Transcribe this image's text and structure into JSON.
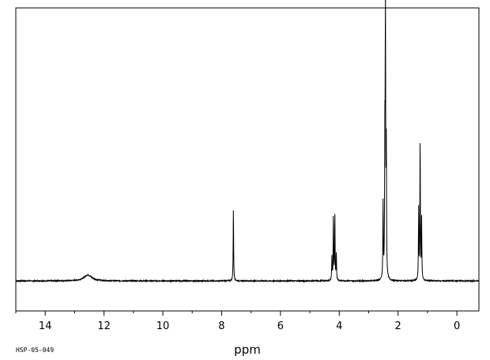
{
  "chart_data": {
    "type": "line",
    "title": "",
    "xlabel": "ppm",
    "ylabel": "",
    "x_reversed": true,
    "xlim": [
      15.0,
      -0.75
    ],
    "ylim": [
      -0.11,
      1.0
    ],
    "grid": false,
    "legend": "none",
    "x_ticks": [
      14,
      12,
      10,
      8,
      6,
      4,
      2,
      0
    ],
    "x_tick_labels": [
      "14",
      "12",
      "10",
      "8",
      "6",
      "4",
      "2",
      "0"
    ],
    "x_minor_tick_step": 1,
    "sample_id": "HSP-05-049",
    "series": [
      {
        "peaks": [
          {
            "ppm": 12.55,
            "height": 0.022,
            "width": 0.16
          },
          {
            "ppm": 7.6,
            "height": 0.27,
            "width": 0.009
          },
          {
            "ppm": 4.25,
            "height": 0.085,
            "width": 0.009
          },
          {
            "ppm": 4.2,
            "height": 0.24,
            "width": 0.009
          },
          {
            "ppm": 4.15,
            "height": 0.24,
            "width": 0.009
          },
          {
            "ppm": 4.1,
            "height": 0.095,
            "width": 0.009
          },
          {
            "ppm": 2.51,
            "height": 0.28,
            "width": 0.009
          },
          {
            "ppm": 2.45,
            "height": 0.46,
            "width": 0.009
          },
          {
            "ppm": 2.43,
            "height": 1.0,
            "width": 0.009
          },
          {
            "ppm": 2.4,
            "height": 0.46,
            "width": 0.009
          },
          {
            "ppm": 1.3,
            "height": 0.26,
            "width": 0.009
          },
          {
            "ppm": 1.25,
            "height": 0.52,
            "width": 0.009
          },
          {
            "ppm": 1.2,
            "height": 0.23,
            "width": 0.009
          }
        ],
        "baseline": 0.0,
        "noise_amplitude": 0.002
      }
    ]
  }
}
